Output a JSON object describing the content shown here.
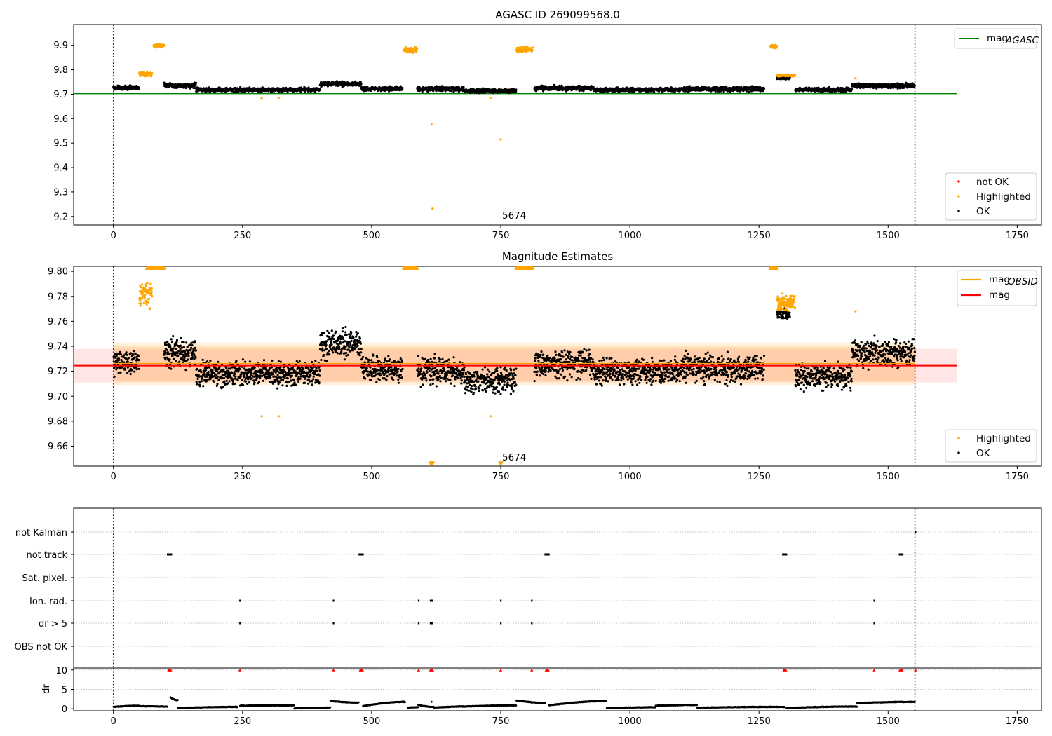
{
  "chart_data": [
    {
      "type": "scatter",
      "title": "AGASC ID 269099568.0",
      "xlim": [
        -77,
        1797
      ],
      "ylim": [
        9.165,
        9.985
      ],
      "xticks": [
        0,
        250,
        500,
        750,
        1000,
        1250,
        1500,
        1750
      ],
      "yticks": [
        9.2,
        9.3,
        9.4,
        9.5,
        9.6,
        9.7,
        9.8,
        9.9
      ],
      "vlines": [
        0,
        1552
      ],
      "hline": {
        "name": "mag_AGASC",
        "value": 9.703,
        "x_range": [
          -77,
          1633
        ],
        "color": "#008000"
      },
      "legend_top": [
        {
          "label_main": "mag",
          "label_sub": "AGASC",
          "color": "#008000",
          "kind": "line"
        }
      ],
      "legend_bottom": [
        {
          "label": "not OK",
          "color": "#ff0000",
          "kind": "dot"
        },
        {
          "label": "Highlighted",
          "color": "#ffa500",
          "kind": "dot"
        },
        {
          "label": "OK",
          "color": "#000000",
          "kind": "dot"
        }
      ],
      "annotation": {
        "text": "5674",
        "x": 750,
        "y": 9.175
      },
      "ok_segments": [
        {
          "x": [
            0,
            50
          ],
          "base": 9.727,
          "spread": 0.012
        },
        {
          "x": [
            98,
            160
          ],
          "base": 9.735,
          "spread": 0.014
        },
        {
          "x": [
            160,
            400
          ],
          "base": 9.718,
          "spread": 0.012
        },
        {
          "x": [
            400,
            480
          ],
          "base": 9.742,
          "spread": 0.014
        },
        {
          "x": [
            480,
            560
          ],
          "base": 9.722,
          "spread": 0.012
        },
        {
          "x": [
            588,
            680
          ],
          "base": 9.722,
          "spread": 0.014
        },
        {
          "x": [
            680,
            780
          ],
          "base": 9.714,
          "spread": 0.012
        },
        {
          "x": [
            815,
            930
          ],
          "base": 9.725,
          "spread": 0.014
        },
        {
          "x": [
            930,
            1100
          ],
          "base": 9.718,
          "spread": 0.012
        },
        {
          "x": [
            1100,
            1260
          ],
          "base": 9.722,
          "spread": 0.014
        },
        {
          "x": [
            1285,
            1310
          ],
          "base": 9.767,
          "spread": 0.008
        },
        {
          "x": [
            1320,
            1430
          ],
          "base": 9.718,
          "spread": 0.012
        },
        {
          "x": [
            1430,
            1552
          ],
          "base": 9.735,
          "spread": 0.014
        }
      ],
      "highlighted_clusters": [
        {
          "x": [
            50,
            75
          ],
          "base": 9.782,
          "spread": 0.012
        },
        {
          "x": [
            78,
            98
          ],
          "base": 9.898,
          "spread": 0.01
        },
        {
          "x": [
            562,
            588
          ],
          "base": 9.88,
          "spread": 0.015
        },
        {
          "x": [
            780,
            812
          ],
          "base": 9.882,
          "spread": 0.014
        },
        {
          "x": [
            1272,
            1285
          ],
          "base": 9.895,
          "spread": 0.01
        },
        {
          "x": [
            1285,
            1320
          ],
          "base": 9.777,
          "spread": 0.006
        }
      ],
      "highlighted_points": [
        [
          287,
          9.684
        ],
        [
          320,
          9.685
        ],
        [
          616,
          9.576
        ],
        [
          618,
          9.232
        ],
        [
          730,
          9.685
        ],
        [
          750,
          9.515
        ],
        [
          1437,
          9.765
        ]
      ]
    },
    {
      "type": "scatter",
      "title": "Magnitude Estimates",
      "xlim": [
        -77,
        1797
      ],
      "ylim": [
        9.644,
        9.804
      ],
      "xticks": [
        0,
        250,
        500,
        750,
        1000,
        1250,
        1500,
        1750
      ],
      "yticks": [
        9.66,
        9.68,
        9.7,
        9.72,
        9.74,
        9.76,
        9.78,
        9.8
      ],
      "ytick_labels": [
        "9.66",
        "9.68",
        "9.70",
        "9.72",
        "9.74",
        "9.76",
        "9.78",
        "9.80"
      ],
      "vlines": [
        0,
        1552
      ],
      "mag": {
        "value": 9.7245,
        "band": [
          9.711,
          9.738
        ],
        "x_range": [
          -77,
          1633
        ],
        "color": "#ff0000"
      },
      "mag_obsid": {
        "value": 9.726,
        "band_outer": [
          9.709,
          9.743
        ],
        "band_inner": [
          9.712,
          9.74
        ],
        "x_range": [
          0,
          1552
        ],
        "color": "#ffa500"
      },
      "legend_top": [
        {
          "label_main": "mag",
          "label_sub": "OBSID",
          "color": "#ffa500",
          "kind": "line"
        },
        {
          "label_main": "mag",
          "label_sub": "",
          "color": "#ff0000",
          "kind": "line"
        }
      ],
      "legend_bottom": [
        {
          "label": "Highlighted",
          "color": "#ffa500",
          "kind": "dot"
        },
        {
          "label": "OK",
          "color": "#000000",
          "kind": "dot"
        }
      ],
      "annotation": {
        "text": "5674",
        "x": 750,
        "y": 9.648
      },
      "ok_segments": [
        {
          "x": [
            0,
            50
          ],
          "base": 9.727,
          "spread": 0.014
        },
        {
          "x": [
            98,
            160
          ],
          "base": 9.735,
          "spread": 0.016
        },
        {
          "x": [
            160,
            400
          ],
          "base": 9.718,
          "spread": 0.014
        },
        {
          "x": [
            400,
            480
          ],
          "base": 9.742,
          "spread": 0.016
        },
        {
          "x": [
            480,
            560
          ],
          "base": 9.722,
          "spread": 0.014
        },
        {
          "x": [
            588,
            680
          ],
          "base": 9.72,
          "spread": 0.016
        },
        {
          "x": [
            680,
            780
          ],
          "base": 9.713,
          "spread": 0.014
        },
        {
          "x": [
            815,
            930
          ],
          "base": 9.726,
          "spread": 0.016
        },
        {
          "x": [
            930,
            1100
          ],
          "base": 9.72,
          "spread": 0.014
        },
        {
          "x": [
            1100,
            1260
          ],
          "base": 9.722,
          "spread": 0.016
        },
        {
          "x": [
            1285,
            1310
          ],
          "base": 9.766,
          "spread": 0.006
        },
        {
          "x": [
            1320,
            1430
          ],
          "base": 9.716,
          "spread": 0.014
        },
        {
          "x": [
            1430,
            1552
          ],
          "base": 9.735,
          "spread": 0.016
        }
      ],
      "highlighted_clusters": [
        {
          "x": [
            50,
            75
          ],
          "base": 9.782,
          "spread": 0.014
        },
        {
          "x": [
            1285,
            1320
          ],
          "base": 9.775,
          "spread": 0.009
        }
      ],
      "capped_clusters": [
        {
          "x": [
            65,
            98
          ],
          "y": 9.803
        },
        {
          "x": [
            562,
            588
          ],
          "y": 9.803
        },
        {
          "x": [
            780,
            812
          ],
          "y": 9.803
        },
        {
          "x": [
            1272,
            1285
          ],
          "y": 9.803
        }
      ],
      "capped_bottom": [
        {
          "x": [
            614,
            620
          ],
          "y": 9.646
        },
        {
          "x": [
            749,
            752
          ],
          "y": 9.646
        }
      ],
      "highlighted_points": [
        [
          287,
          9.684
        ],
        [
          320,
          9.684
        ],
        [
          730,
          9.684
        ],
        [
          1437,
          9.768
        ]
      ]
    },
    {
      "type": "scatter",
      "title": "",
      "xlim": [
        -77,
        1797
      ],
      "categories": [
        "not Kalman",
        "not track",
        "Sat. pixel.",
        "Ion. rad.",
        "dr > 5",
        "OBS not OK"
      ],
      "vlines": [
        0,
        1552
      ],
      "flags": {
        "not Kalman": [
          1553
        ],
        "not track": [
          105,
          106,
          107,
          108,
          109,
          110,
          111,
          112,
          476,
          477,
          478,
          479,
          480,
          481,
          482,
          483,
          836,
          837,
          838,
          839,
          840,
          841,
          842,
          843,
          1296,
          1297,
          1298,
          1299,
          1300,
          1301,
          1302,
          1303,
          1522,
          1523,
          1524,
          1525,
          1526,
          1527,
          1528
        ],
        "Sat. pixel.": [],
        "Ion. rad.": [
          245,
          426,
          591,
          614,
          616,
          618,
          750,
          810,
          1473
        ],
        "dr > 5": [
          245,
          426,
          591,
          614,
          616,
          618,
          750,
          810,
          1473
        ],
        "OBS not OK": []
      }
    },
    {
      "type": "line",
      "title": "",
      "ylabel": "dr",
      "xlim": [
        -77,
        1797
      ],
      "ylim": [
        -0.5,
        10.5
      ],
      "xticks": [
        0,
        250,
        500,
        750,
        1000,
        1250,
        1500,
        1750
      ],
      "yticks": [
        0,
        5,
        10
      ],
      "vlines": [
        0,
        1552
      ],
      "dr_segments": [
        {
          "x": [
            0,
            50
          ],
          "a": 0.5,
          "b": 0.8
        },
        {
          "x": [
            50,
            105
          ],
          "a": 0.7,
          "b": 0.6
        },
        {
          "x": [
            110,
            125
          ],
          "a": 3.0,
          "b": 2.2
        },
        {
          "x": [
            125,
            240
          ],
          "a": 0.2,
          "b": 0.5
        },
        {
          "x": [
            245,
            350
          ],
          "a": 0.8,
          "b": 0.9
        },
        {
          "x": [
            350,
            420
          ],
          "a": 0.1,
          "b": 0.3
        },
        {
          "x": [
            420,
            475
          ],
          "a": 2.0,
          "b": 1.6
        },
        {
          "x": [
            483,
            565
          ],
          "a": 0.7,
          "b": 1.8
        },
        {
          "x": [
            570,
            590
          ],
          "a": 0.3,
          "b": 0.4
        },
        {
          "x": [
            590,
            620
          ],
          "a": 1.0,
          "b": 0.5
        },
        {
          "x": [
            620,
            680
          ],
          "a": 0.3,
          "b": 0.6
        },
        {
          "x": [
            680,
            780
          ],
          "a": 0.6,
          "b": 0.9
        },
        {
          "x": [
            780,
            836
          ],
          "a": 2.2,
          "b": 1.5
        },
        {
          "x": [
            843,
            955
          ],
          "a": 0.9,
          "b": 2.0
        },
        {
          "x": [
            955,
            1050
          ],
          "a": 0.2,
          "b": 0.4
        },
        {
          "x": [
            1050,
            1130
          ],
          "a": 0.8,
          "b": 1.0
        },
        {
          "x": [
            1130,
            1300
          ],
          "a": 0.3,
          "b": 0.5
        },
        {
          "x": [
            1303,
            1440
          ],
          "a": 0.2,
          "b": 0.6
        },
        {
          "x": [
            1440,
            1552
          ],
          "a": 1.5,
          "b": 1.8
        }
      ],
      "dr_red": [
        107,
        109,
        111,
        245,
        426,
        478,
        480,
        482,
        591,
        614,
        616,
        618,
        750,
        810,
        838,
        840,
        842,
        1298,
        1300,
        1302,
        1473,
        1523,
        1525,
        1527,
        1553
      ],
      "dr_spikes": [
        [
          616,
          1.8
        ]
      ]
    }
  ]
}
